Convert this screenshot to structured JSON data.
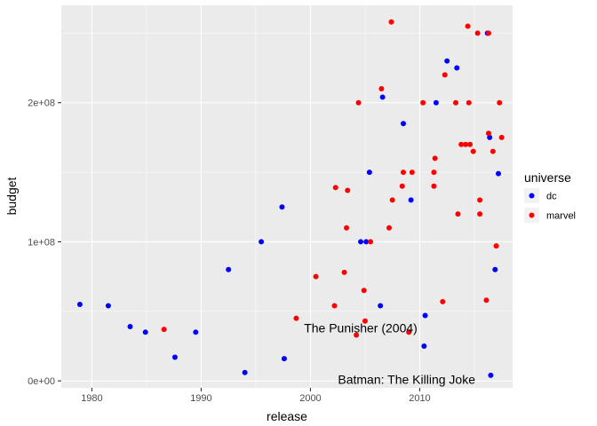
{
  "chart_data": {
    "type": "scatter",
    "xlabel": "release",
    "ylabel": "budget",
    "xlim": [
      1977.2,
      2018.5
    ],
    "ylim": [
      -5000000,
      270000000
    ],
    "x_ticks": [
      1980,
      1990,
      2000,
      2010
    ],
    "x_tick_labels": [
      "1980",
      "1990",
      "2000",
      "2010"
    ],
    "y_ticks": [
      0,
      100000000,
      200000000
    ],
    "y_tick_labels": [
      "0e+00",
      "1e+08",
      "2e+08"
    ],
    "grid": true,
    "legend": {
      "title": "universe",
      "position": "right",
      "entries": [
        "dc",
        "marvel"
      ]
    },
    "colors": {
      "dc": "#0000ff",
      "marvel": "#ff0000",
      "panel": "#ebebeb",
      "grid_major": "#ffffff"
    },
    "series": [
      {
        "name": "dc",
        "points": [
          [
            1978.9,
            55000000
          ],
          [
            1981.5,
            54000000
          ],
          [
            1983.5,
            39000000
          ],
          [
            1984.9,
            35000000
          ],
          [
            1987.6,
            17000000
          ],
          [
            1989.5,
            35000000
          ],
          [
            1992.5,
            80000000
          ],
          [
            1994.0,
            6000000
          ],
          [
            1995.5,
            100000000
          ],
          [
            1997.4,
            125000000
          ],
          [
            1997.6,
            16000000
          ],
          [
            2004.6,
            100000000
          ],
          [
            2005.1,
            100000000
          ],
          [
            2005.4,
            150000000
          ],
          [
            2006.4,
            54000000
          ],
          [
            2006.6,
            204000000
          ],
          [
            2008.5,
            185000000
          ],
          [
            2009.2,
            130000000
          ],
          [
            2010.4,
            25000000
          ],
          [
            2010.5,
            47000000
          ],
          [
            2011.5,
            200000000
          ],
          [
            2012.5,
            230000000
          ],
          [
            2013.4,
            225000000
          ],
          [
            2016.2,
            250000000
          ],
          [
            2016.4,
            175000000
          ],
          [
            2016.5,
            4000000
          ],
          [
            2016.9,
            80000000
          ],
          [
            2017.2,
            149000000
          ]
        ]
      },
      {
        "name": "marvel",
        "points": [
          [
            1986.6,
            37000000
          ],
          [
            1998.7,
            45000000
          ],
          [
            2000.5,
            75000000
          ],
          [
            2002.3,
            139000000
          ],
          [
            2002.2,
            54000000
          ],
          [
            2003.1,
            78000000
          ],
          [
            2003.3,
            110000000
          ],
          [
            2003.4,
            137000000
          ],
          [
            2004.2,
            33000000
          ],
          [
            2004.4,
            200000000
          ],
          [
            2004.9,
            65000000
          ],
          [
            2005.0,
            43000000
          ],
          [
            2005.5,
            100000000
          ],
          [
            2006.5,
            210000000
          ],
          [
            2007.2,
            110000000
          ],
          [
            2007.4,
            258000000
          ],
          [
            2007.5,
            130000000
          ],
          [
            2008.4,
            140000000
          ],
          [
            2008.5,
            150000000
          ],
          [
            2009.0,
            35000000
          ],
          [
            2009.3,
            150000000
          ],
          [
            2010.3,
            200000000
          ],
          [
            2011.3,
            140000000
          ],
          [
            2011.3,
            150000000
          ],
          [
            2011.4,
            160000000
          ],
          [
            2012.1,
            57000000
          ],
          [
            2012.3,
            220000000
          ],
          [
            2013.3,
            200000000
          ],
          [
            2013.5,
            120000000
          ],
          [
            2013.8,
            170000000
          ],
          [
            2014.2,
            170000000
          ],
          [
            2014.4,
            255000000
          ],
          [
            2014.5,
            200000000
          ],
          [
            2014.6,
            170000000
          ],
          [
            2014.9,
            165000000
          ],
          [
            2015.3,
            250000000
          ],
          [
            2015.5,
            130000000
          ],
          [
            2015.5,
            120000000
          ],
          [
            2016.1,
            58000000
          ],
          [
            2016.3,
            250000000
          ],
          [
            2016.3,
            178000000
          ],
          [
            2016.7,
            165000000
          ],
          [
            2017.0,
            97000000
          ],
          [
            2017.3,
            200000000
          ],
          [
            2017.5,
            175000000
          ]
        ]
      }
    ],
    "annotations": [
      {
        "text": "The Punisher (2004)",
        "x": 2004.6,
        "y": 38000000
      },
      {
        "text": "Batman: The Killing Joke",
        "x": 2008.8,
        "y": 1000000
      }
    ]
  }
}
